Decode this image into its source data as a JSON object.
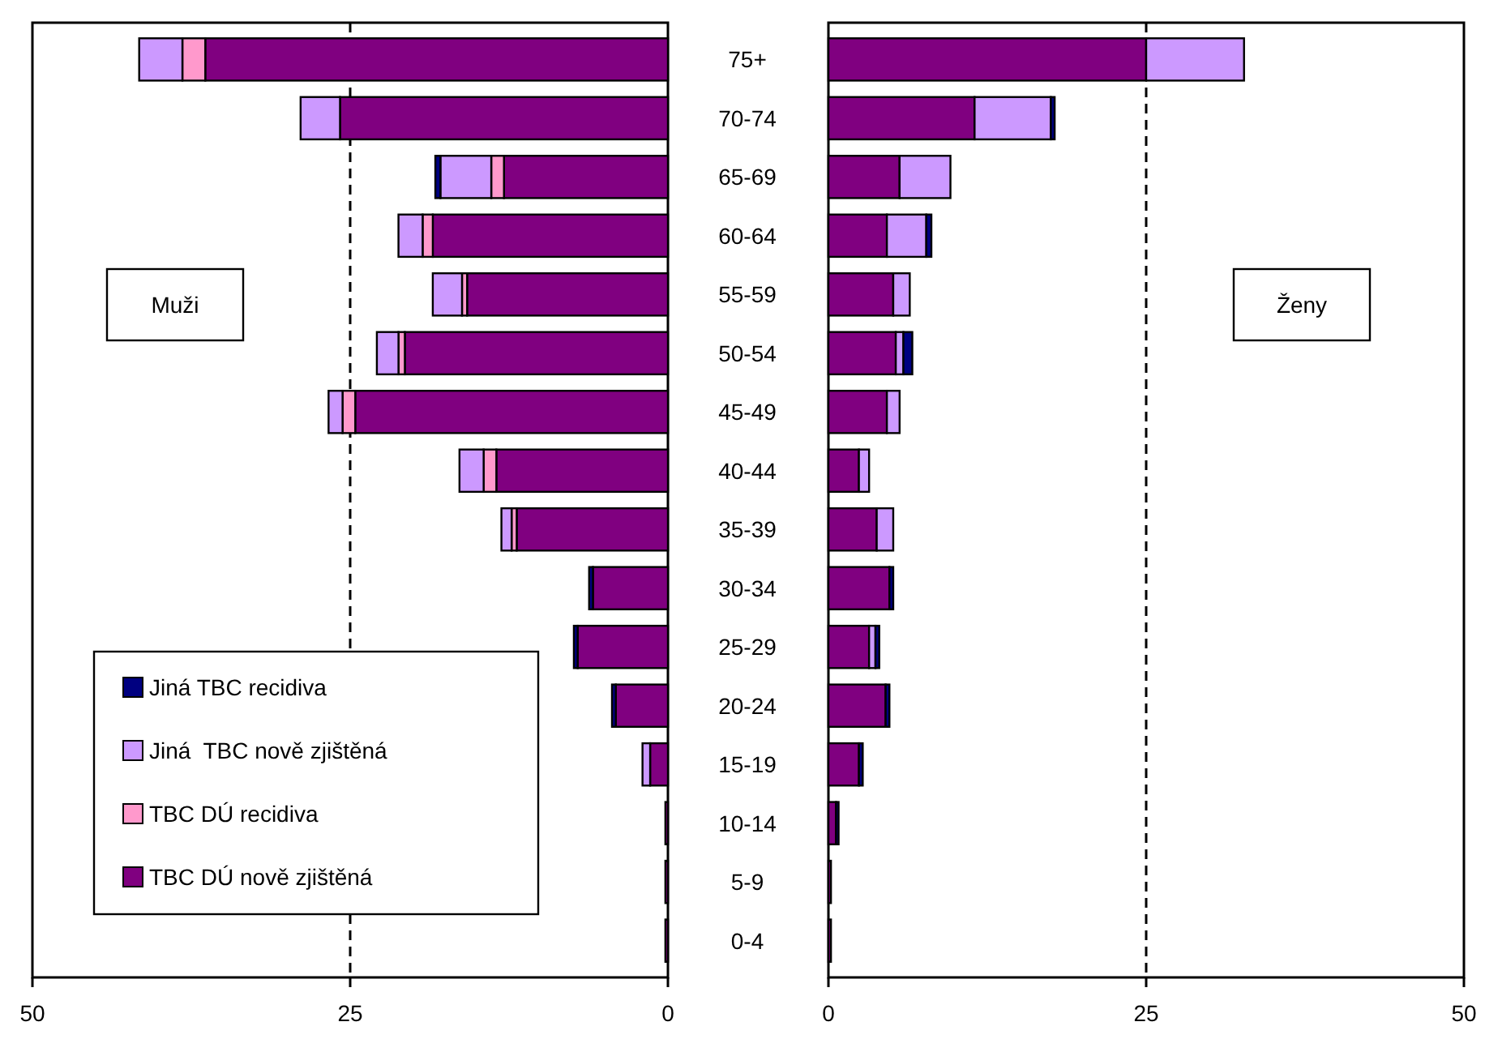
{
  "chart_data": [
    {
      "type": "bar",
      "orientation": "horizontal",
      "stacked": true,
      "categories": [
        "75+",
        "70-74",
        "65-69",
        "60-64",
        "55-59",
        "50-54",
        "45-49",
        "40-44",
        "35-39",
        "30-34",
        "25-29",
        "20-24",
        "15-19",
        "10-14",
        "5-9",
        "0-4"
      ],
      "series": [
        {
          "name": "TBC DÚ nově zjištěná",
          "color": "#800080",
          "values": [
            36.4,
            25.8,
            12.9,
            18.5,
            15.8,
            20.7,
            24.6,
            13.5,
            11.9,
            5.9,
            7.1,
            4.1,
            1.4,
            0.2,
            0.2,
            0.2
          ]
        },
        {
          "name": "TBC DÚ recidiva",
          "color": "#ff99cc",
          "values": [
            1.8,
            0,
            1.0,
            0.8,
            0.4,
            0.5,
            1.0,
            1.0,
            0.4,
            0,
            0,
            0,
            0,
            0,
            0,
            0
          ]
        },
        {
          "name": "Jiná  TBC nově zjištěná",
          "color": "#cc99ff",
          "values": [
            3.4,
            3.1,
            4.0,
            1.9,
            2.3,
            1.7,
            1.1,
            1.9,
            0.8,
            0,
            0,
            0,
            0.6,
            0,
            0,
            0
          ]
        },
        {
          "name": "Jiná TBC recidiva",
          "color": "#000080",
          "values": [
            0,
            0,
            0.4,
            0,
            0,
            0,
            0,
            0,
            0,
            0.3,
            0.3,
            0.3,
            0,
            0,
            0,
            0
          ]
        }
      ],
      "xlim": [
        50,
        0
      ],
      "xticks": [
        50,
        25,
        0
      ],
      "ref_lines": [
        {
          "axis": "x",
          "value": 25,
          "line_style": "dashed"
        }
      ],
      "annotations": [
        "Muži"
      ],
      "legend": "bottom left"
    },
    {
      "type": "bar",
      "orientation": "horizontal",
      "stacked": true,
      "tick_labels": "x",
      "categories": [
        null,
        null,
        null,
        null,
        null,
        null,
        null,
        null,
        null,
        null,
        null,
        null,
        null,
        null,
        null,
        null
      ],
      "series": [
        {
          "color": "#800080",
          "values": [
            25.0,
            11.5,
            5.6,
            4.6,
            5.1,
            5.3,
            4.6,
            2.4,
            3.8,
            4.8,
            3.2,
            4.5,
            2.4,
            0.6,
            0.2,
            0.2
          ]
        },
        {
          "color": "#ff99cc",
          "values": [
            0,
            0,
            0,
            0,
            0,
            0,
            0,
            0,
            0,
            0,
            0,
            0,
            0,
            0,
            0,
            0
          ]
        },
        {
          "color": "#cc99ff",
          "values": [
            7.7,
            6.0,
            4.0,
            3.1,
            1.3,
            0.6,
            1.0,
            0.8,
            1.3,
            0,
            0.5,
            0,
            0,
            0,
            0,
            0
          ]
        },
        {
          "color": "#000080",
          "values": [
            0,
            0.3,
            0,
            0.4,
            0,
            0.7,
            0,
            0,
            0,
            0.3,
            0.3,
            0.3,
            0.3,
            0.2,
            0,
            0
          ]
        }
      ],
      "xlim": [
        0,
        50
      ],
      "xticks": [
        0,
        25,
        50
      ],
      "ref_lines": [
        {
          "axis": "x",
          "value": 25,
          "line_style": "dashed"
        }
      ],
      "annotations": [
        "Ženy"
      ]
    }
  ]
}
